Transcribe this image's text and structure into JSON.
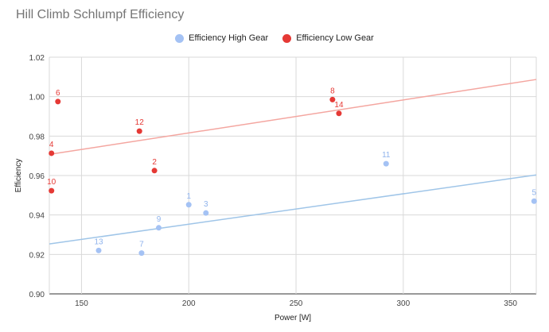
{
  "chart_data": {
    "type": "scatter",
    "title": "Hill Climb Schlumpf Efficiency",
    "xlabel": "Power [W]",
    "ylabel": "Efficiency",
    "xlim": [
      135,
      362
    ],
    "ylim": [
      0.9,
      1.02
    ],
    "xticks": [
      150,
      200,
      250,
      300,
      350
    ],
    "yticks": [
      0.9,
      0.92,
      0.94,
      0.96,
      0.98,
      1.0,
      1.02
    ],
    "ytick_labels": [
      "0.90",
      "0.92",
      "0.94",
      "0.96",
      "0.98",
      "1.00",
      "1.02"
    ],
    "legend_position": "top-center",
    "grid": true,
    "series": [
      {
        "name": "Efficiency High Gear",
        "color": "#a4c2f4",
        "trend_color": "#9fc5e8",
        "trendline": {
          "x": [
            135,
            362
          ],
          "y": [
            0.9253,
            0.9603
          ]
        },
        "points": [
          {
            "label": "1",
            "x": 200,
            "y": 0.9452
          },
          {
            "label": "3",
            "x": 208,
            "y": 0.941
          },
          {
            "label": "5",
            "x": 361,
            "y": 0.947
          },
          {
            "label": "7",
            "x": 178,
            "y": 0.9207
          },
          {
            "label": "9",
            "x": 186,
            "y": 0.9335
          },
          {
            "label": "11",
            "x": 292,
            "y": 0.966
          },
          {
            "label": "13",
            "x": 158,
            "y": 0.922
          }
        ]
      },
      {
        "name": "Efficiency Low Gear",
        "color": "#e53935",
        "trend_color": "#f4a6a0",
        "trendline": {
          "x": [
            135,
            362
          ],
          "y": [
            0.9707,
            1.0087
          ]
        },
        "points": [
          {
            "label": "2",
            "x": 184,
            "y": 0.9625
          },
          {
            "label": "4",
            "x": 136,
            "y": 0.9713
          },
          {
            "label": "6",
            "x": 139,
            "y": 0.9975
          },
          {
            "label": "8",
            "x": 267,
            "y": 0.9985
          },
          {
            "label": "10",
            "x": 136,
            "y": 0.9523
          },
          {
            "label": "12",
            "x": 177,
            "y": 0.9825
          },
          {
            "label": "14",
            "x": 270,
            "y": 0.9915
          }
        ]
      }
    ]
  }
}
